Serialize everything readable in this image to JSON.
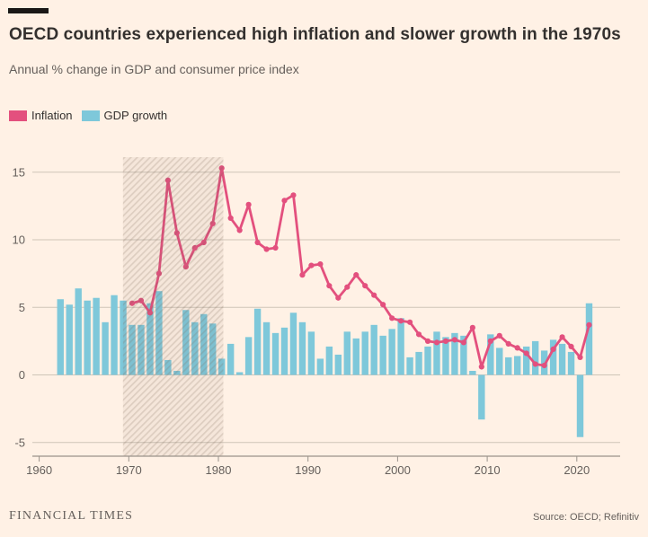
{
  "header": {
    "title": "OECD countries experienced high inflation and slower growth in the 1970s",
    "subtitle": "Annual % change in GDP and consumer price index"
  },
  "legend": [
    {
      "label": "Inflation",
      "color": "#E3507E"
    },
    {
      "label": "GDP growth",
      "color": "#7EC8DA"
    }
  ],
  "footer": {
    "brand": "FINANCIAL TIMES",
    "source": "Source: OECD; Refinitiv"
  },
  "colors": {
    "background": "#FFF1E5",
    "title_text": "#33302E",
    "secondary_text": "#66605C",
    "gridline": "#CFC5B8",
    "axis_line": "#9A938B",
    "inflation_pink": "#E3507E",
    "gdp_blue": "#7EC8DA",
    "band_tint": "rgba(125,105,85,0.08)",
    "band_stripe": "rgba(125,105,85,0.20)"
  },
  "chart_data": {
    "type": "bar+line",
    "title": "OECD countries experienced high inflation and slower growth in the 1970s",
    "ylabel": "",
    "xlabel": "",
    "grid": true,
    "legend_position": "top-left",
    "y_axis": {
      "ticks": [
        15,
        10,
        5,
        0,
        -5
      ],
      "range": [
        -6.5,
        16.5
      ]
    },
    "x_axis": {
      "ticks": [
        1960,
        1970,
        1980,
        1990,
        2000,
        2010,
        2020
      ],
      "range": [
        1959.2,
        2024.8
      ]
    },
    "highlight_band": {
      "from_year": 1969.35,
      "to_year": 1980.55
    },
    "series": [
      {
        "name": "GDP growth",
        "type": "bar",
        "color": "#7EC8DA",
        "start_year": 1962,
        "values": [
          5.6,
          5.2,
          6.4,
          5.5,
          5.7,
          3.9,
          5.9,
          5.5,
          3.7,
          3.7,
          5.3,
          6.2,
          1.1,
          0.3,
          4.8,
          3.9,
          4.5,
          3.8,
          1.2,
          2.3,
          0.2,
          2.8,
          4.9,
          3.9,
          3.1,
          3.5,
          4.6,
          3.9,
          3.2,
          1.2,
          2.1,
          1.5,
          3.2,
          2.7,
          3.2,
          3.7,
          2.9,
          3.4,
          4.2,
          1.3,
          1.7,
          2.1,
          3.2,
          2.8,
          3.1,
          2.9,
          0.3,
          -3.3,
          3.0,
          2.0,
          1.3,
          1.4,
          2.1,
          2.5,
          1.8,
          2.6,
          2.3,
          1.7,
          -4.6,
          5.3
        ]
      },
      {
        "name": "Inflation",
        "type": "line",
        "color": "#E3507E",
        "start_year": 1970,
        "values": [
          5.3,
          5.5,
          4.6,
          7.5,
          14.4,
          10.5,
          8.0,
          9.4,
          9.8,
          11.2,
          15.3,
          11.6,
          10.7,
          12.6,
          9.8,
          9.3,
          9.4,
          12.9,
          13.3,
          7.4,
          8.1,
          8.2,
          6.6,
          5.7,
          6.5,
          7.4,
          6.6,
          5.9,
          5.2,
          4.2,
          4.0,
          3.9,
          3.0,
          2.5,
          2.4,
          2.5,
          2.6,
          2.4,
          3.5,
          0.6,
          2.5,
          2.9,
          2.3,
          2.0,
          1.6,
          0.8,
          0.7,
          1.9,
          2.8,
          2.1,
          1.3,
          3.7
        ]
      }
    ]
  }
}
